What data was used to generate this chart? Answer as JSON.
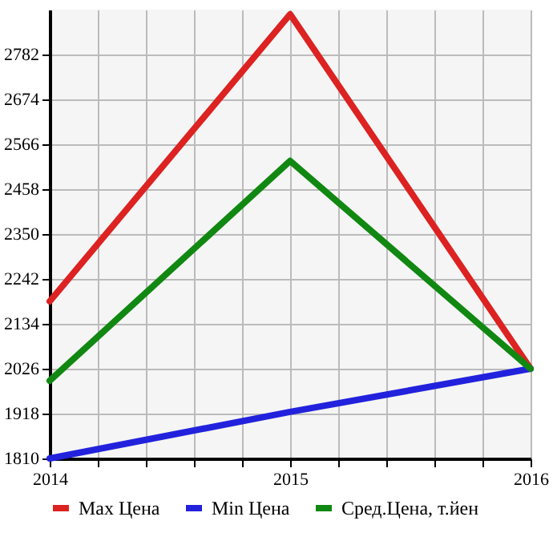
{
  "chart_data": {
    "type": "line",
    "x": [
      2014,
      2015,
      2016
    ],
    "series": [
      {
        "name": "Max Цена",
        "color": "#dd2222",
        "values": [
          2188,
          2879,
          2026
        ]
      },
      {
        "name": "Min Цена",
        "color": "#2222dd",
        "values": [
          1810,
          1922,
          2026
        ]
      },
      {
        "name": "Сред.Цена, т.йен",
        "color": "#118811",
        "values": [
          1997,
          2526,
          2026
        ]
      }
    ],
    "xlim": [
      2014,
      2016
    ],
    "xticks": [
      2014,
      {
        "value": 2014.2,
        "label": null
      },
      {
        "value": 2014.4,
        "label": null
      },
      {
        "value": 2014.6,
        "label": null
      },
      {
        "value": 2014.8,
        "label": null
      },
      2015,
      {
        "value": 2015.2,
        "label": null
      },
      {
        "value": 2015.4,
        "label": null
      },
      {
        "value": 2015.6,
        "label": null
      },
      {
        "value": 2015.8,
        "label": null
      },
      2016
    ],
    "ylim": [
      1810,
      2890
    ],
    "yticks": [
      1810,
      1918,
      2026,
      2134,
      2242,
      2350,
      2458,
      2566,
      2674,
      2782
    ],
    "grid": true,
    "legend": "bottom",
    "marker": "none",
    "line_style": "solid"
  }
}
